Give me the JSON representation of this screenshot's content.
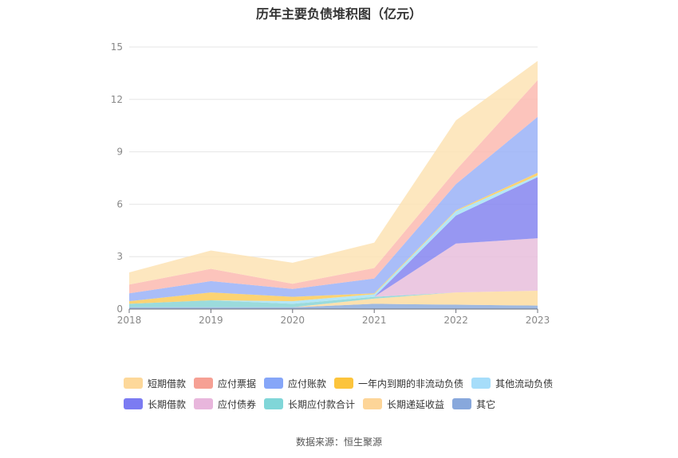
{
  "chart_data": {
    "type": "area",
    "stacked": true,
    "title": "历年主要负债堆积图（亿元）",
    "source": "数据来源：恒生聚源",
    "x": [
      "2018",
      "2019",
      "2020",
      "2021",
      "2022",
      "2023"
    ],
    "ylim": [
      0,
      15
    ],
    "yticks": [
      "0",
      "3",
      "6",
      "9",
      "12",
      "15"
    ],
    "grid": true,
    "legend_position": "bottom",
    "series": [
      {
        "name": "其它",
        "color": "#8eaddc",
        "values": [
          0.1,
          0.1,
          0.1,
          0.3,
          0.25,
          0.2
        ]
      },
      {
        "name": "长期递延收益",
        "color": "#fddca0",
        "values": [
          0.0,
          0.0,
          0.0,
          0.3,
          0.7,
          0.85
        ]
      },
      {
        "name": "长期应付款合计",
        "color": "#8ad5d6",
        "values": [
          0.2,
          0.4,
          0.2,
          0.1,
          0.0,
          0.0
        ]
      },
      {
        "name": "应付债券",
        "color": "#e8bedc",
        "values": [
          0.0,
          0.0,
          0.0,
          0.0,
          2.8,
          3.0
        ]
      },
      {
        "name": "长期借款",
        "color": "#8585f0",
        "values": [
          0.0,
          0.0,
          0.0,
          0.0,
          1.6,
          3.5
        ]
      },
      {
        "name": "其他流动负债",
        "color": "#a6e2f6",
        "values": [
          0.0,
          0.0,
          0.15,
          0.15,
          0.25,
          0.1
        ]
      },
      {
        "name": "一年内到期的非流动负债",
        "color": "#fccb5a",
        "values": [
          0.15,
          0.45,
          0.25,
          0.05,
          0.05,
          0.15
        ]
      },
      {
        "name": "应付账款",
        "color": "#9ab2f7",
        "values": [
          0.45,
          0.65,
          0.45,
          0.85,
          1.5,
          3.2
        ]
      },
      {
        "name": "应付票据",
        "color": "#fcbab0",
        "values": [
          0.5,
          0.7,
          0.3,
          0.6,
          0.8,
          2.1
        ]
      },
      {
        "name": "短期借款",
        "color": "#fde3b4",
        "values": [
          0.7,
          1.05,
          1.2,
          1.45,
          2.85,
          1.1
        ]
      }
    ],
    "legend_order": [
      "短期借款",
      "应付票据",
      "应付账款",
      "一年内到期的非流动负债",
      "其他流动负债",
      "长期借款",
      "应付债券",
      "长期应付款合计",
      "长期递延收益",
      "其它"
    ],
    "legend_colors": {
      "短期借款": "#fdd89a",
      "应付票据": "#f6a094",
      "应付账款": "#86a6f8",
      "一年内到期的非流动负债": "#fcc43c",
      "其他流动负债": "#a6ddfa",
      "长期借款": "#7b7bf2",
      "应付债券": "#e8b6dc",
      "长期应付款合计": "#80d6d8",
      "长期递延收益": "#fdd598",
      "其它": "#88a8dc"
    }
  }
}
